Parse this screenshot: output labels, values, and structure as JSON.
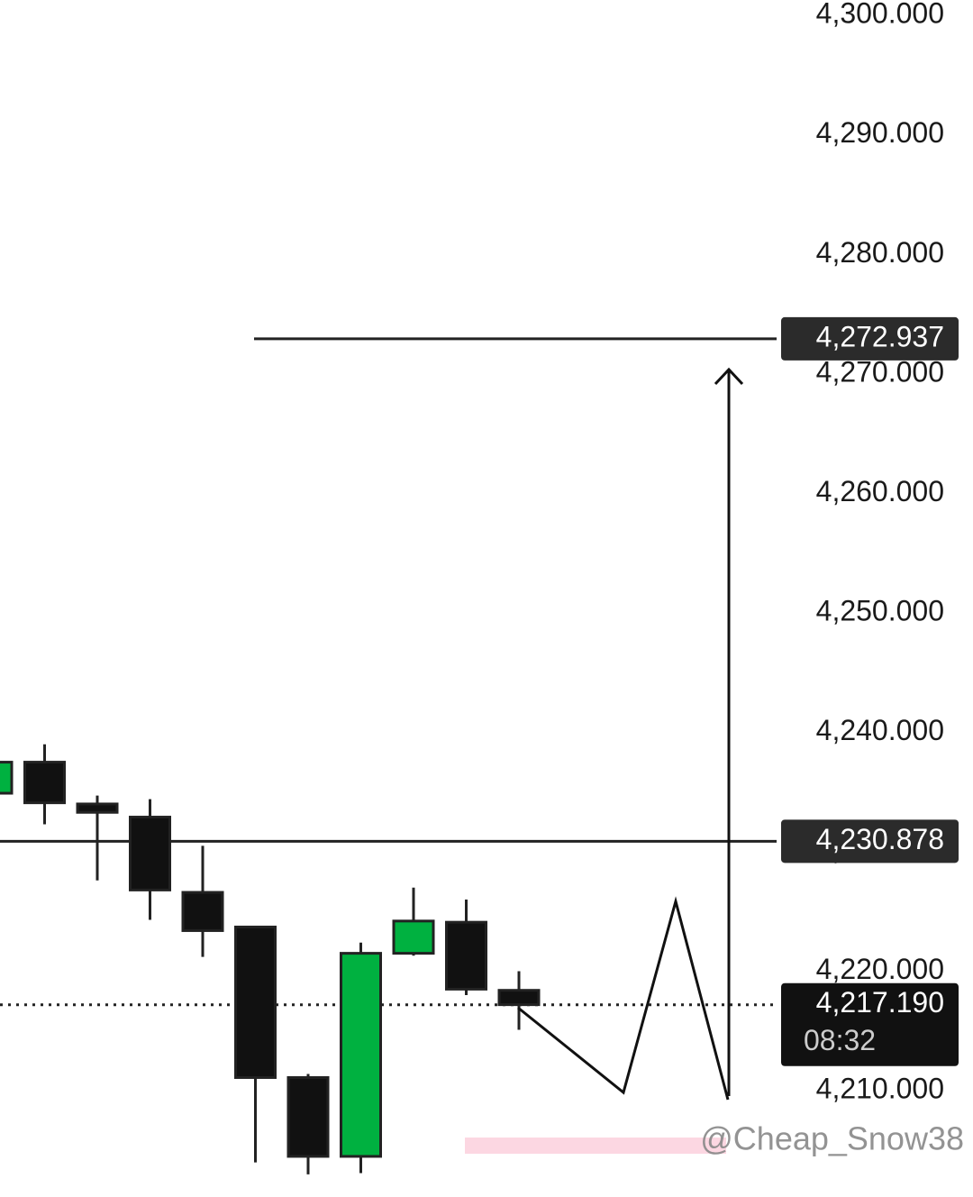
{
  "chart_data": {
    "type": "candlestick",
    "open": [
      4234.9,
      4237.5,
      4234.0,
      4232.9,
      4226.6,
      4223.7,
      4211.1,
      4204.5,
      4221.5,
      4224.1,
      4218.4
    ],
    "high": [
      4237.8,
      4239.0,
      4234.7,
      4234.4,
      4230.5,
      4223.7,
      4211.4,
      4222.4,
      4227.0,
      4226.0,
      4220.0
    ],
    "low": [
      4234.6,
      4232.3,
      4227.6,
      4224.3,
      4221.2,
      4204.0,
      4203.0,
      4203.1,
      4221.3,
      4218.0,
      4215.1
    ],
    "close": [
      4237.5,
      4234.1,
      4233.3,
      4226.8,
      4223.4,
      4211.1,
      4204.5,
      4221.5,
      4224.2,
      4218.5,
      4217.2
    ],
    "up_color": "#00b140",
    "down_color": "#111111",
    "ylim": [
      4201.1,
      4301.3
    ],
    "yticks": [
      {
        "value": 4210,
        "label": "4,210.000"
      },
      {
        "value": 4220,
        "label": "4,220.000"
      },
      {
        "value": 4230,
        "label": "4,230.000"
      },
      {
        "value": 4240,
        "label": "4,240.000"
      },
      {
        "value": 4250,
        "label": "4,250.000"
      },
      {
        "value": 4260,
        "label": "4,260.000"
      },
      {
        "value": 4270,
        "label": "4,270.000"
      },
      {
        "value": 4280,
        "label": "4,280.000"
      },
      {
        "value": 4290,
        "label": "4,290.000"
      },
      {
        "value": 4300,
        "label": "4,300.000"
      }
    ],
    "price_lines": [
      {
        "value": 4272.937,
        "label": "4,272.937"
      },
      {
        "value": 4230.878,
        "label": "4,230.878"
      }
    ],
    "current_price": {
      "value": 4217.19,
      "label": "4,217.190",
      "countdown": "08:32"
    },
    "watermark": "@Cheap_Snow38"
  }
}
